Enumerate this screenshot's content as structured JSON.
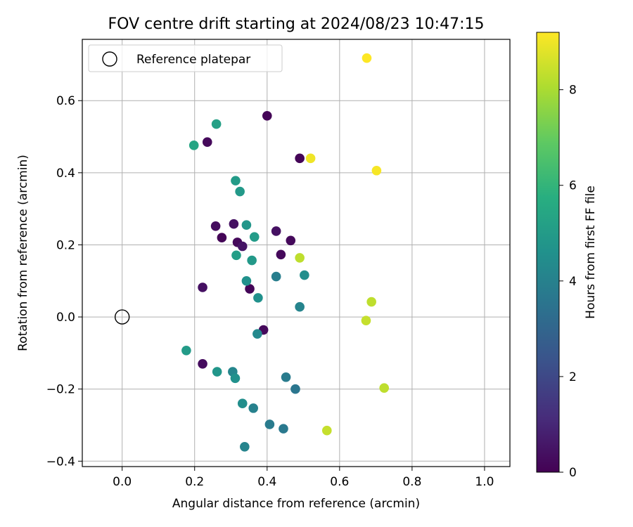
{
  "chart_data": {
    "type": "scatter",
    "title": "FOV centre drift starting at 2024/08/23 10:47:15",
    "xlabel": "Angular distance from reference (arcmin)",
    "ylabel": "Rotation from reference (arcmin)",
    "xlim": [
      -0.11,
      1.07
    ],
    "ylim": [
      -0.415,
      0.77
    ],
    "xticks": [
      "0.0",
      "0.2",
      "0.4",
      "0.6",
      "0.8",
      "1.0"
    ],
    "yticks": [
      "−0.4",
      "−0.2",
      "0.0",
      "0.2",
      "0.4",
      "0.6"
    ],
    "xtick_values": [
      0.0,
      0.2,
      0.4,
      0.6,
      0.8,
      1.0
    ],
    "ytick_values": [
      -0.4,
      -0.2,
      0.0,
      0.2,
      0.4,
      0.6
    ],
    "grid": true,
    "legend": {
      "position": "top-left",
      "entries": [
        "Reference platepar"
      ]
    },
    "colorbar": {
      "label": "Hours from first FF file",
      "range": [
        0,
        9.2
      ],
      "ticks": [
        "0",
        "2",
        "4",
        "6",
        "8"
      ],
      "tick_values": [
        0,
        2,
        4,
        6,
        8
      ],
      "colormap": "viridis"
    },
    "reference_point": {
      "x": 0.0,
      "y": 0.0
    },
    "points": [
      {
        "x": 0.4,
        "y": 0.558,
        "h": 0.1
      },
      {
        "x": 0.235,
        "y": 0.485,
        "h": 0.2
      },
      {
        "x": 0.49,
        "y": 0.44,
        "h": 0.1
      },
      {
        "x": 0.425,
        "y": 0.238,
        "h": 0.4
      },
      {
        "x": 0.465,
        "y": 0.212,
        "h": 0.2
      },
      {
        "x": 0.258,
        "y": 0.252,
        "h": 0.3
      },
      {
        "x": 0.308,
        "y": 0.258,
        "h": 0.4
      },
      {
        "x": 0.275,
        "y": 0.22,
        "h": 0.1
      },
      {
        "x": 0.318,
        "y": 0.207,
        "h": 0.2
      },
      {
        "x": 0.332,
        "y": 0.196,
        "h": 0.5
      },
      {
        "x": 0.438,
        "y": 0.173,
        "h": 0.2
      },
      {
        "x": 0.222,
        "y": 0.082,
        "h": 0.4
      },
      {
        "x": 0.352,
        "y": 0.078,
        "h": 0.1
      },
      {
        "x": 0.39,
        "y": -0.036,
        "h": 0.2
      },
      {
        "x": 0.222,
        "y": -0.13,
        "h": 0.3
      },
      {
        "x": 0.26,
        "y": 0.535,
        "h": 5.2
      },
      {
        "x": 0.198,
        "y": 0.476,
        "h": 5.4
      },
      {
        "x": 0.313,
        "y": 0.378,
        "h": 5.0
      },
      {
        "x": 0.325,
        "y": 0.348,
        "h": 4.9
      },
      {
        "x": 0.343,
        "y": 0.255,
        "h": 4.8
      },
      {
        "x": 0.365,
        "y": 0.222,
        "h": 5.0
      },
      {
        "x": 0.315,
        "y": 0.171,
        "h": 5.1
      },
      {
        "x": 0.358,
        "y": 0.157,
        "h": 4.9
      },
      {
        "x": 0.425,
        "y": 0.112,
        "h": 3.9
      },
      {
        "x": 0.503,
        "y": 0.116,
        "h": 4.5
      },
      {
        "x": 0.343,
        "y": 0.1,
        "h": 4.6
      },
      {
        "x": 0.375,
        "y": 0.053,
        "h": 4.6
      },
      {
        "x": 0.49,
        "y": 0.028,
        "h": 4.1
      },
      {
        "x": 0.373,
        "y": -0.047,
        "h": 4.3
      },
      {
        "x": 0.177,
        "y": -0.093,
        "h": 5.0
      },
      {
        "x": 0.262,
        "y": -0.152,
        "h": 4.8
      },
      {
        "x": 0.305,
        "y": -0.152,
        "h": 4.2
      },
      {
        "x": 0.312,
        "y": -0.17,
        "h": 4.6
      },
      {
        "x": 0.452,
        "y": -0.167,
        "h": 3.8
      },
      {
        "x": 0.478,
        "y": -0.2,
        "h": 3.6
      },
      {
        "x": 0.332,
        "y": -0.24,
        "h": 4.5
      },
      {
        "x": 0.362,
        "y": -0.253,
        "h": 4.0
      },
      {
        "x": 0.407,
        "y": -0.298,
        "h": 3.8
      },
      {
        "x": 0.445,
        "y": -0.31,
        "h": 3.7
      },
      {
        "x": 0.338,
        "y": -0.36,
        "h": 4.1
      },
      {
        "x": 0.675,
        "y": 0.718,
        "h": 9.2
      },
      {
        "x": 0.52,
        "y": 0.44,
        "h": 9.0
      },
      {
        "x": 0.702,
        "y": 0.406,
        "h": 9.1
      },
      {
        "x": 0.49,
        "y": 0.164,
        "h": 8.3
      },
      {
        "x": 0.688,
        "y": 0.042,
        "h": 8.3
      },
      {
        "x": 0.673,
        "y": -0.01,
        "h": 8.4
      },
      {
        "x": 0.723,
        "y": -0.197,
        "h": 8.3
      },
      {
        "x": 0.565,
        "y": -0.315,
        "h": 8.4
      }
    ]
  }
}
